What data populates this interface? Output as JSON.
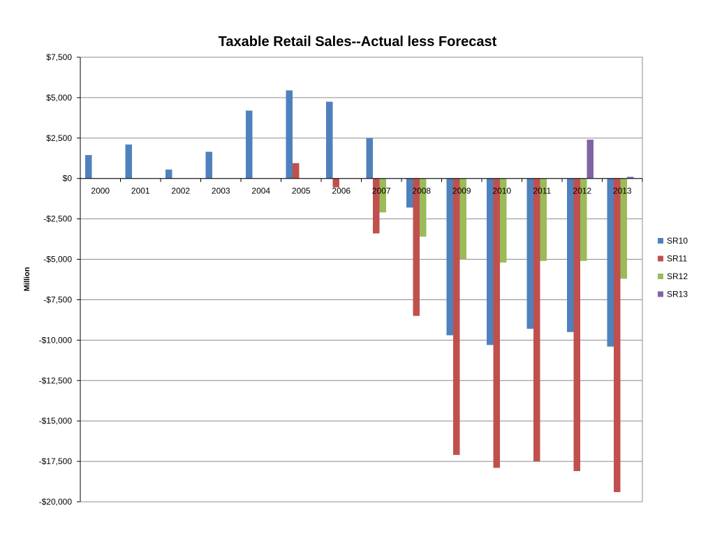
{
  "chart_data": {
    "type": "bar",
    "title": "Taxable Retail Sales--Actual less Forecast",
    "xlabel": "",
    "ylabel": "Million",
    "ylim": [
      -20000,
      7500
    ],
    "yticks": [
      7500,
      5000,
      2500,
      0,
      -2500,
      -5000,
      -7500,
      -10000,
      -12500,
      -15000,
      -17500,
      -20000
    ],
    "ytick_labels": [
      "$7,500",
      "$5,000",
      "$2,500",
      "$0",
      "-$2,500",
      "-$5,000",
      "-$7,500",
      "-$10,000",
      "-$12,500",
      "-$15,000",
      "-$17,500",
      "-$20,000"
    ],
    "categories": [
      "2000",
      "2001",
      "2002",
      "2003",
      "2004",
      "2005",
      "2006",
      "2007",
      "2008",
      "2009",
      "2010",
      "2011",
      "2012",
      "2013"
    ],
    "grid": true,
    "legend_position": "right",
    "series": [
      {
        "name": "SR10",
        "color": "#4F81BD",
        "values": [
          1450,
          2100,
          550,
          1650,
          4200,
          5450,
          4750,
          2500,
          -1800,
          -9700,
          -10300,
          -9300,
          -9500,
          -10400
        ]
      },
      {
        "name": "SR11",
        "color": "#C0504D",
        "values": [
          null,
          null,
          null,
          null,
          null,
          950,
          -550,
          -3400,
          -8500,
          -17100,
          -17900,
          -17500,
          -18100,
          -19400
        ]
      },
      {
        "name": "SR12",
        "color": "#9BBB59",
        "values": [
          null,
          null,
          null,
          null,
          null,
          null,
          null,
          -2100,
          -3600,
          -5000,
          -5200,
          -5100,
          -5100,
          -6200
        ]
      },
      {
        "name": "SR13",
        "color": "#8064A2",
        "values": [
          null,
          null,
          null,
          null,
          null,
          null,
          null,
          null,
          null,
          null,
          null,
          null,
          2400,
          100
        ]
      }
    ]
  }
}
